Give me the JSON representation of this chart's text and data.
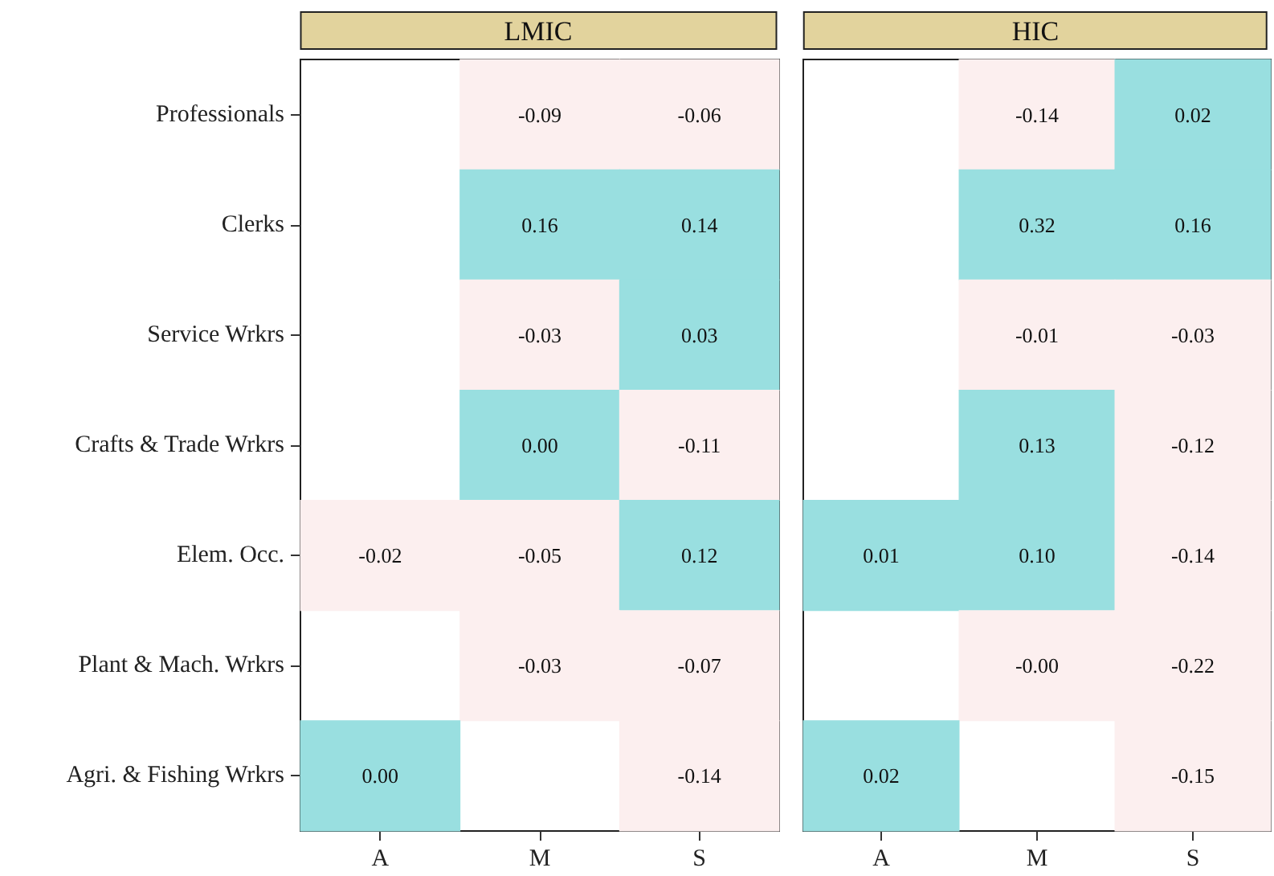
{
  "chart_data": [
    {
      "type": "heatmap",
      "title": "LMIC",
      "categories": [
        "A",
        "M",
        "S"
      ],
      "y_categories": [
        "Professionals",
        "Clerks",
        "Service Wrkrs",
        "Crafts & Trade Wrkrs",
        "Elem. Occ.",
        "Plant & Mach. Wrkrs",
        "Agri. & Fishing Wrkrs"
      ],
      "colors": [
        "#fcefef",
        "#99dfe0"
      ],
      "cells": [
        [
          null,
          -0.09,
          -0.06
        ],
        [
          null,
          0.16,
          0.14
        ],
        [
          null,
          -0.03,
          0.03
        ],
        [
          null,
          0.0,
          -0.11
        ],
        [
          -0.02,
          -0.05,
          0.12
        ],
        [
          null,
          -0.03,
          -0.07
        ],
        [
          0.0,
          null,
          -0.14
        ]
      ],
      "cell_labels": [
        [
          null,
          "-0.09",
          "-0.06"
        ],
        [
          null,
          "0.16",
          "0.14"
        ],
        [
          null,
          "-0.03",
          "0.03"
        ],
        [
          null,
          "0.00",
          "-0.11"
        ],
        [
          "-0.02",
          "-0.05",
          "0.12"
        ],
        [
          null,
          "-0.03",
          "-0.07"
        ],
        [
          "0.00",
          null,
          "-0.14"
        ]
      ]
    },
    {
      "type": "heatmap",
      "title": "HIC",
      "categories": [
        "A",
        "M",
        "S"
      ],
      "y_categories": [
        null,
        null,
        null,
        null,
        null,
        null,
        null
      ],
      "colors": [
        "#fcefef",
        "#99dfe0"
      ],
      "tick_labels": "x",
      "cells": [
        [
          null,
          -0.14,
          0.02
        ],
        [
          null,
          0.32,
          0.16
        ],
        [
          null,
          -0.01,
          -0.03
        ],
        [
          null,
          0.13,
          -0.12
        ],
        [
          0.01,
          0.1,
          -0.14
        ],
        [
          null,
          -0.001,
          -0.22
        ],
        [
          0.02,
          null,
          -0.15
        ]
      ],
      "cell_labels": [
        [
          null,
          "-0.14",
          "0.02"
        ],
        [
          null,
          "0.32",
          "0.16"
        ],
        [
          null,
          "-0.01",
          "-0.03"
        ],
        [
          null,
          "0.13",
          "-0.12"
        ],
        [
          "0.01",
          "0.10",
          "-0.14"
        ],
        [
          null,
          "-0.00",
          "-0.22"
        ],
        [
          "0.02",
          null,
          "-0.15"
        ]
      ]
    }
  ]
}
